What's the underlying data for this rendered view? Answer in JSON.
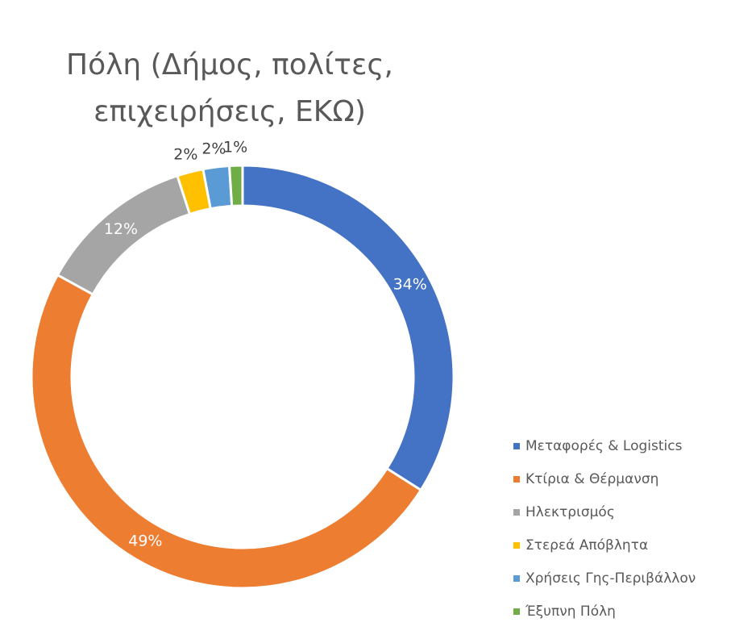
{
  "chart_data": {
    "type": "donut",
    "title": "Πόλη (Δήμος, πολίτες, επιχειρήσεις, ΕΚΩ)",
    "categories": [
      "Μεταφορές & Logistics",
      "Κτίρια & Θέρμανση",
      "Ηλεκτρισμός",
      "Στερεά Απόβλητα",
      "Χρήσεις Γης-Περιβάλλον",
      "Έξυπνη Πόλη"
    ],
    "values": [
      34,
      49,
      12,
      2,
      2,
      1
    ],
    "value_labels": [
      "34%",
      "49%",
      "12%",
      "2%",
      "2%",
      "1%"
    ],
    "colors": [
      "#4472c4",
      "#ed7d31",
      "#a5a5a5",
      "#ffc000",
      "#5b9bd5",
      "#70ad47"
    ],
    "legend": "right"
  }
}
